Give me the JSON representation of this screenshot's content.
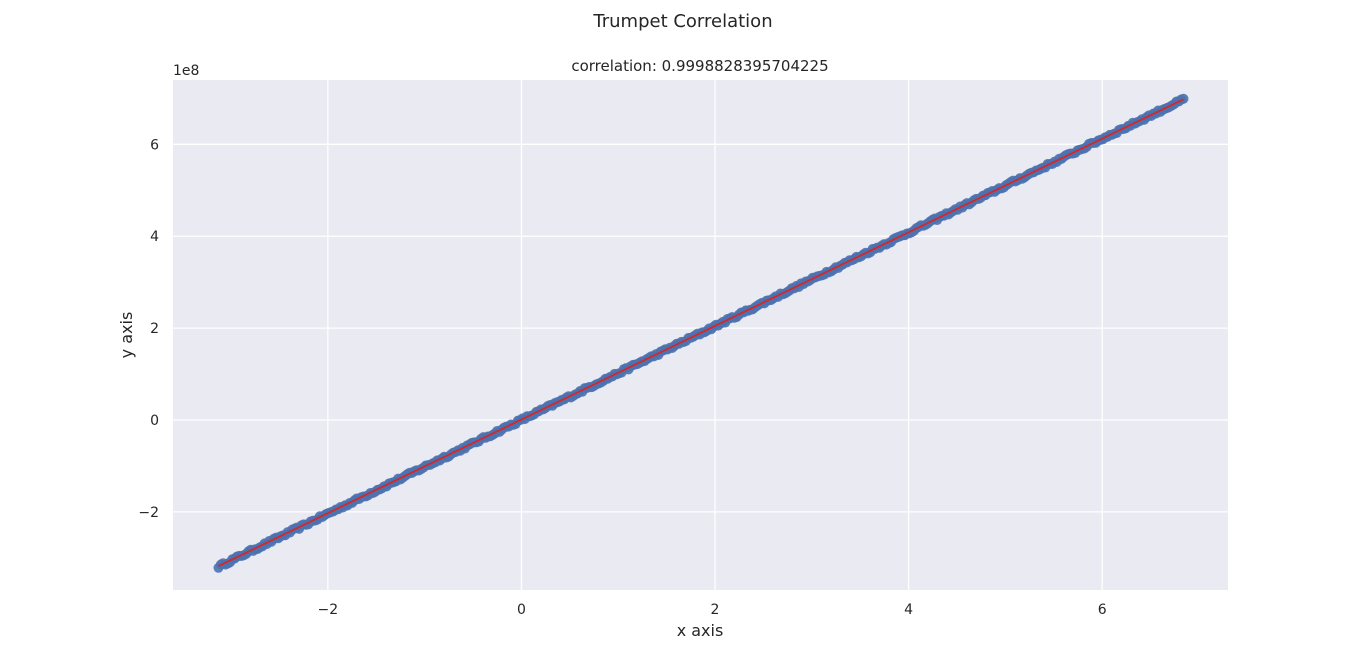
{
  "chart_data": {
    "type": "scatter",
    "suptitle": "Trumpet Correlation",
    "title": "correlation: 0.9998828395704225",
    "xlabel": "x axis",
    "ylabel": "y axis",
    "y_offset_label": "1e8",
    "xlim": [
      -3.6,
      7.3
    ],
    "ylim": [
      -3.7,
      7.4
    ],
    "x_ticks": [
      -2,
      0,
      2,
      4,
      6
    ],
    "x_tick_labels": [
      "−2",
      "0",
      "2",
      "4",
      "6"
    ],
    "y_ticks": [
      -2,
      0,
      2,
      4,
      6
    ],
    "y_tick_labels": [
      "−2",
      "0",
      "2",
      "4",
      "6"
    ],
    "grid": true,
    "series": [
      {
        "kind": "scatter",
        "color": "#4c72b0",
        "x_range": [
          -3.13,
          6.84
        ],
        "slope": 1.02,
        "intercept": 0.0,
        "point_count": 420
      },
      {
        "kind": "line",
        "color": "#d62728",
        "x": [
          -3.13,
          6.84
        ],
        "y": [
          -3.18,
          6.98
        ]
      }
    ]
  }
}
